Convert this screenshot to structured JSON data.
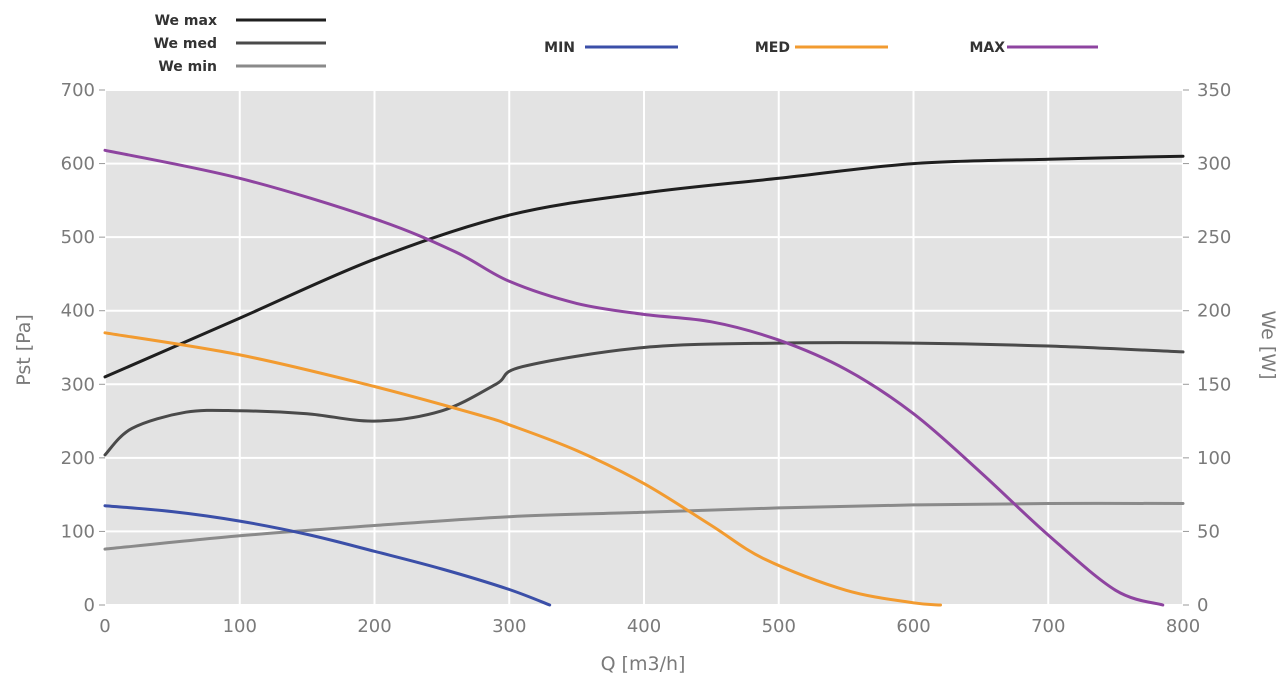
{
  "chart_data": {
    "type": "line",
    "xlabel": "Q [m3/h]",
    "ylabel": "Pst [Pa]",
    "y2label": "We [W]",
    "xlim": [
      0,
      800
    ],
    "ylim": [
      0,
      700
    ],
    "y2lim": [
      0,
      350
    ],
    "x_ticks": [
      0,
      100,
      200,
      300,
      400,
      500,
      600,
      700,
      800
    ],
    "y_ticks": [
      0,
      100,
      200,
      300,
      400,
      500,
      600,
      700
    ],
    "y2_ticks": [
      0,
      50,
      100,
      150,
      200,
      250,
      300,
      350
    ],
    "grid": true,
    "legend_pressure_placement": "top-center",
    "legend_power_placement": "top-left",
    "series": [
      {
        "name": "MIN",
        "axis": "left",
        "color": "#3b4fa8",
        "x": [
          0,
          50,
          100,
          150,
          200,
          250,
          300,
          330
        ],
        "y": [
          135,
          127,
          114,
          96,
          73,
          49,
          21,
          0
        ]
      },
      {
        "name": "MED",
        "axis": "left",
        "color": "#f29b30",
        "x": [
          0,
          100,
          200,
          280,
          300,
          350,
          400,
          450,
          490,
          550,
          600,
          620
        ],
        "y": [
          370,
          340,
          297,
          257,
          245,
          210,
          165,
          108,
          62,
          20,
          3,
          0
        ]
      },
      {
        "name": "MAX",
        "axis": "left",
        "color": "#8e44a0",
        "x": [
          0,
          100,
          200,
          260,
          300,
          350,
          400,
          450,
          500,
          550,
          600,
          650,
          700,
          750,
          785
        ],
        "y": [
          618,
          580,
          525,
          480,
          440,
          410,
          395,
          385,
          360,
          320,
          260,
          180,
          95,
          20,
          0
        ]
      },
      {
        "name": "We max",
        "axis": "right",
        "color": "#1f1f1f",
        "x": [
          0,
          100,
          200,
          300,
          400,
          500,
          600,
          700,
          800
        ],
        "y": [
          155,
          195,
          235,
          265,
          280,
          290,
          300,
          303,
          305
        ]
      },
      {
        "name": "We med",
        "axis": "right",
        "color": "#4a4a4a",
        "x": [
          0,
          20,
          60,
          100,
          150,
          200,
          250,
          290,
          310,
          400,
          500,
          600,
          700,
          800
        ],
        "y": [
          102,
          120,
          131,
          132,
          130,
          125,
          132,
          150,
          162,
          175,
          178,
          178,
          176,
          172
        ]
      },
      {
        "name": "We min",
        "axis": "right",
        "color": "#8a8a8a",
        "x": [
          0,
          100,
          200,
          300,
          400,
          500,
          600,
          700,
          800
        ],
        "y": [
          38,
          47,
          54,
          60,
          63,
          66,
          68,
          69,
          69
        ]
      }
    ]
  }
}
